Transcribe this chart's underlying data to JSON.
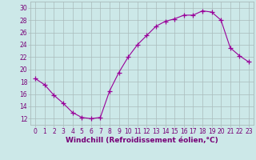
{
  "x": [
    0,
    1,
    2,
    3,
    4,
    5,
    6,
    7,
    8,
    9,
    10,
    11,
    12,
    13,
    14,
    15,
    16,
    17,
    18,
    19,
    20,
    21,
    22,
    23
  ],
  "y": [
    18.5,
    17.5,
    15.8,
    14.5,
    13.0,
    12.2,
    12.0,
    12.2,
    16.5,
    19.5,
    22.0,
    24.0,
    25.5,
    27.0,
    27.8,
    28.2,
    28.8,
    28.8,
    29.5,
    29.3,
    28.0,
    23.5,
    22.2,
    21.2
  ],
  "line_color": "#990099",
  "marker": "+",
  "marker_size": 4,
  "bg_color": "#cce8e8",
  "grid_color": "#aabbbb",
  "xlabel": "Windchill (Refroidissement éolien,°C)",
  "ylim": [
    11,
    31
  ],
  "xlim": [
    -0.5,
    23.5
  ],
  "yticks": [
    12,
    14,
    16,
    18,
    20,
    22,
    24,
    26,
    28,
    30
  ],
  "xticks": [
    0,
    1,
    2,
    3,
    4,
    5,
    6,
    7,
    8,
    9,
    10,
    11,
    12,
    13,
    14,
    15,
    16,
    17,
    18,
    19,
    20,
    21,
    22,
    23
  ],
  "tick_color": "#770077",
  "tick_fontsize": 5.5,
  "xlabel_fontsize": 6.5,
  "line_width": 0.8
}
